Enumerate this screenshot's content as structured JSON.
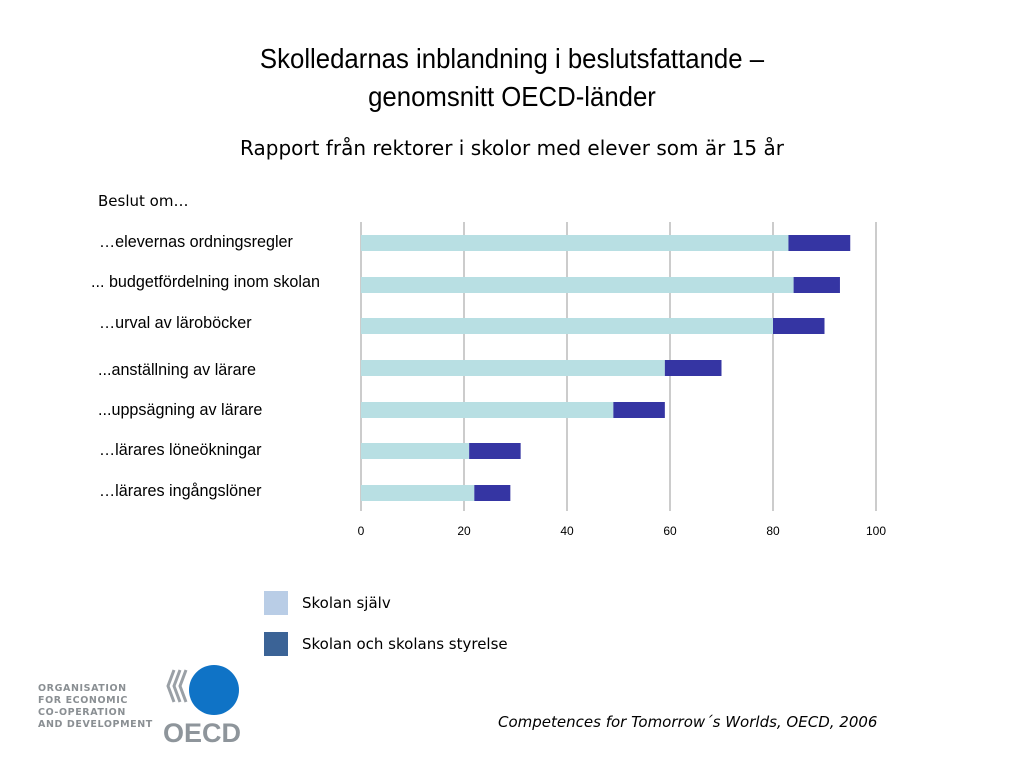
{
  "title_line1": "Skolledarnas inblandning i beslutsfattande –",
  "title_line2": "genomsnitt  OECD-länder",
  "subtitle": "Rapport från rektorer i skolor med elever som är 15 år",
  "group_label": "Beslut om…",
  "colors": {
    "series1": "#b8dfe3",
    "series2": "#3535a3",
    "legend1": "#b9cde6",
    "legend2": "#3b6396",
    "grid": "#9a9a9a"
  },
  "legend": [
    {
      "label": "Skolan själv"
    },
    {
      "label": "Skolan och skolans styrelse"
    }
  ],
  "source": "Competences for Tomorrow´s Worlds, OECD, 2006",
  "logo": {
    "org_lines": [
      "ORGANISATION",
      "FOR ECONOMIC",
      "CO-OPERATION",
      "AND DEVELOPMENT"
    ],
    "wordmark": "OECD"
  },
  "chart_data": {
    "type": "bar",
    "orientation": "horizontal",
    "stacked": true,
    "categories": [
      "…elevernas ordningsregler",
      "... budgetfördelning inom skolan",
      "…urval av läroböcker",
      "...anställning av lärare",
      "...uppsägning av lärare",
      "…lärares löneökningar",
      "…lärares ingångslöner"
    ],
    "series": [
      {
        "name": "Skolan själv",
        "values": [
          83,
          84,
          80,
          59,
          49,
          21,
          22
        ]
      },
      {
        "name": "Skolan och skolans styrelse",
        "values": [
          12,
          9,
          10,
          11,
          10,
          10,
          7
        ]
      }
    ],
    "xlim": [
      0,
      100
    ],
    "xticks": [
      "0",
      "20",
      "40",
      "60",
      "80",
      "100"
    ],
    "grid": true,
    "legend_position": "bottom"
  }
}
